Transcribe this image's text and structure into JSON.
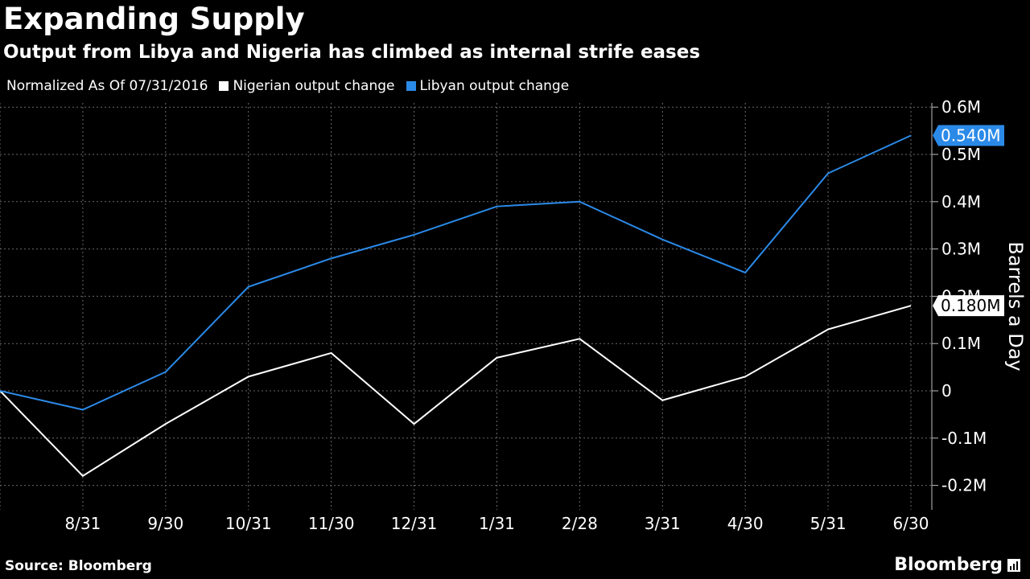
{
  "header": {
    "title": "Expanding Supply",
    "subtitle": "Output from Libya and Nigeria has climbed as internal strife eases"
  },
  "legend": {
    "note": "Normalized As Of 07/31/2016",
    "items": [
      {
        "label": "Nigerian output change",
        "color": "#ffffff"
      },
      {
        "label": "Libyan output change",
        "color": "#2b8ae8"
      }
    ]
  },
  "footer": {
    "source": "Source: Bloomberg",
    "brand": "Bloomberg"
  },
  "chart_data": {
    "type": "line",
    "x": [
      "7/31",
      "8/31",
      "9/30",
      "10/31",
      "11/30",
      "12/31",
      "1/31",
      "2/28",
      "3/31",
      "4/30",
      "5/31",
      "6/30"
    ],
    "xticks": [
      "8/31",
      "9/30",
      "10/31",
      "11/30",
      "12/31",
      "1/31",
      "2/28",
      "3/31",
      "4/30",
      "5/31",
      "6/30"
    ],
    "series": [
      {
        "name": "Nigerian output change",
        "color": "#ffffff",
        "values": [
          0,
          -0.18,
          -0.07,
          0.03,
          0.08,
          -0.07,
          0.07,
          0.11,
          -0.02,
          0.03,
          0.13,
          0.18
        ],
        "last_label": "0.180M"
      },
      {
        "name": "Libyan output change",
        "color": "#2b8ae8",
        "values": [
          0,
          -0.04,
          0.04,
          0.22,
          0.28,
          0.33,
          0.39,
          0.4,
          0.32,
          0.25,
          0.46,
          0.54
        ],
        "last_label": "0.540M"
      }
    ],
    "yticks": [
      0.6,
      0.5,
      0.4,
      0.3,
      0.2,
      0.1,
      0,
      -0.1,
      -0.2
    ],
    "ytick_labels": [
      "0.6M",
      "0.5M",
      "0.4M",
      "0.3M",
      "0.2M",
      "0.1M",
      "0",
      "-0.1M",
      "-0.2M"
    ],
    "ylim": [
      -0.25,
      0.62
    ],
    "ylabel": "Barrels a Day",
    "grid": true
  }
}
